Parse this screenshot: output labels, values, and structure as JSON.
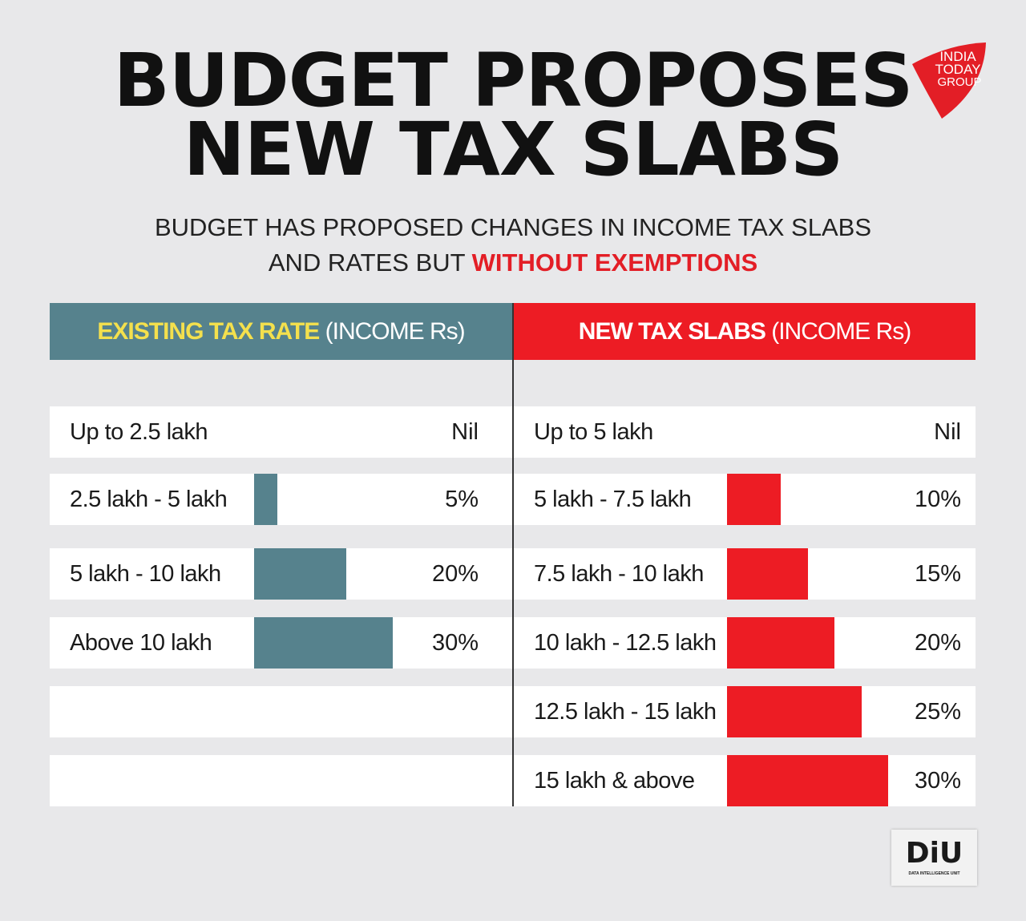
{
  "title": [
    "BUDGET PROPOSES",
    "NEW TAX SLABS"
  ],
  "logo": {
    "text": [
      "INDIA",
      "TODAY",
      "GROUP"
    ],
    "color": "#e31e26"
  },
  "subtitle": {
    "line1": "BUDGET HAS PROPOSED CHANGES IN INCOME TAX SLABS",
    "line2_plain": "AND RATES BUT ",
    "line2_highlight": "WITHOUT EXEMPTIONS"
  },
  "chart_data": [
    {
      "type": "bar",
      "title": "EXISTING TAX RATE",
      "title_suffix": "(INCOME Rs)",
      "color": "#56828d",
      "categories": [
        "Up to 2.5 lakh",
        "2.5 lakh - 5 lakh",
        "5 lakh - 10  lakh",
        "Above 10 lakh"
      ],
      "labels": [
        "Nil",
        "5%",
        "20%",
        "30%"
      ],
      "values": [
        0,
        5,
        20,
        30
      ]
    },
    {
      "type": "bar",
      "title": "NEW TAX SLABS",
      "title_suffix": "(INCOME Rs)",
      "color": "#ed1c24",
      "categories": [
        "Up to 5 lakh",
        "5 lakh - 7.5 lakh",
        "7.5  lakh - 10 lakh",
        "10 lakh - 12.5 lakh",
        "12.5 lakh - 15 lakh",
        "15 lakh & above"
      ],
      "labels": [
        "Nil",
        "10%",
        "15%",
        "20%",
        "25%",
        "30%"
      ],
      "values": [
        0,
        10,
        15,
        20,
        25,
        30
      ]
    }
  ],
  "footer_logo": {
    "text": "DiU",
    "subtext": "DATA INTELLIGENCE UNIT"
  }
}
